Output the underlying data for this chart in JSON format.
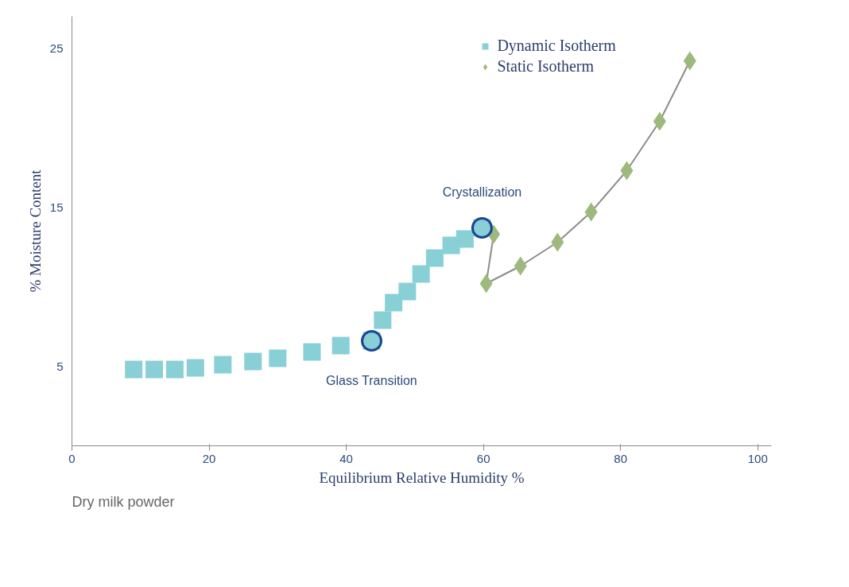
{
  "chart_data": {
    "type": "scatter",
    "xlabel": "Equilibrium Relative Humidity %",
    "ylabel": "% Moisture Content",
    "xlim": [
      0,
      102
    ],
    "ylim": [
      0,
      27
    ],
    "xticks": [
      0,
      20,
      40,
      60,
      80,
      100
    ],
    "yticks": [
      5,
      15,
      25
    ],
    "grid": false,
    "legend": "top right",
    "series": [
      {
        "name": "Dynamic Isotherm",
        "marker": "square",
        "color": "#88d0d6",
        "x": [
          9.0,
          12.0,
          15.0,
          18.0,
          22.0,
          26.4,
          30.0,
          35.0,
          39.2,
          43.7,
          45.3,
          46.9,
          48.9,
          50.9,
          52.9,
          55.3,
          57.3,
          59.8
        ],
        "values": [
          4.8,
          4.8,
          4.8,
          4.9,
          5.1,
          5.3,
          5.5,
          5.9,
          6.3,
          6.6,
          7.9,
          9.0,
          9.7,
          10.8,
          11.8,
          12.6,
          13.0,
          13.7
        ]
      },
      {
        "name": "Static Isotherm",
        "type": "line",
        "marker": "diamond",
        "color": "#9dba7c",
        "x": [
          61.5,
          60.4,
          65.4,
          70.8,
          75.7,
          80.9,
          85.7,
          90.1
        ],
        "values": [
          13.3,
          10.2,
          11.3,
          12.8,
          14.7,
          17.3,
          20.4,
          24.2
        ]
      }
    ],
    "annotations": [
      {
        "text": "Glass Transition",
        "x": 43.7,
        "y": 6.6
      },
      {
        "text": "Crystallization",
        "x": 59.8,
        "y": 13.7
      },
      "Dry milk powder"
    ]
  }
}
